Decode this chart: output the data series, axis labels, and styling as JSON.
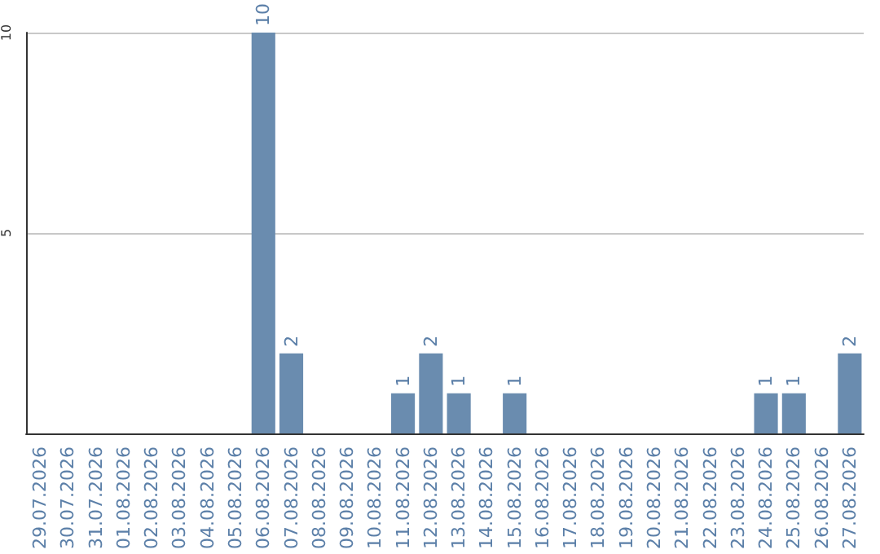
{
  "chart_data": {
    "type": "bar",
    "categories": [
      "29.07.2026",
      "30.07.2026",
      "31.07.2026",
      "01.08.2026",
      "02.08.2026",
      "03.08.2026",
      "04.08.2026",
      "05.08.2026",
      "06.08.2026",
      "07.08.2026",
      "08.08.2026",
      "09.08.2026",
      "10.08.2026",
      "11.08.2026",
      "12.08.2026",
      "13.08.2026",
      "14.08.2026",
      "15.08.2026",
      "16.08.2026",
      "17.08.2026",
      "18.08.2026",
      "19.08.2026",
      "20.08.2026",
      "21.08.2026",
      "22.08.2026",
      "23.08.2026",
      "24.08.2026",
      "25.08.2026",
      "26.08.2026",
      "27.08.2026"
    ],
    "values": [
      0,
      0,
      0,
      0,
      0,
      0,
      0,
      0,
      10,
      2,
      0,
      0,
      0,
      1,
      2,
      1,
      0,
      1,
      0,
      0,
      0,
      0,
      0,
      0,
      0,
      0,
      1,
      1,
      0,
      2
    ],
    "value_labels": [
      null,
      null,
      null,
      null,
      null,
      null,
      null,
      null,
      "10",
      "2",
      null,
      null,
      null,
      "1",
      "2",
      "1",
      null,
      "1",
      null,
      null,
      null,
      null,
      null,
      null,
      null,
      null,
      "1",
      "1",
      null,
      "2"
    ],
    "color": "#6a8caf",
    "ylim": [
      0,
      10
    ],
    "yticks": [
      {
        "value": 0,
        "label": null
      },
      5,
      10
    ],
    "grid": "y"
  }
}
